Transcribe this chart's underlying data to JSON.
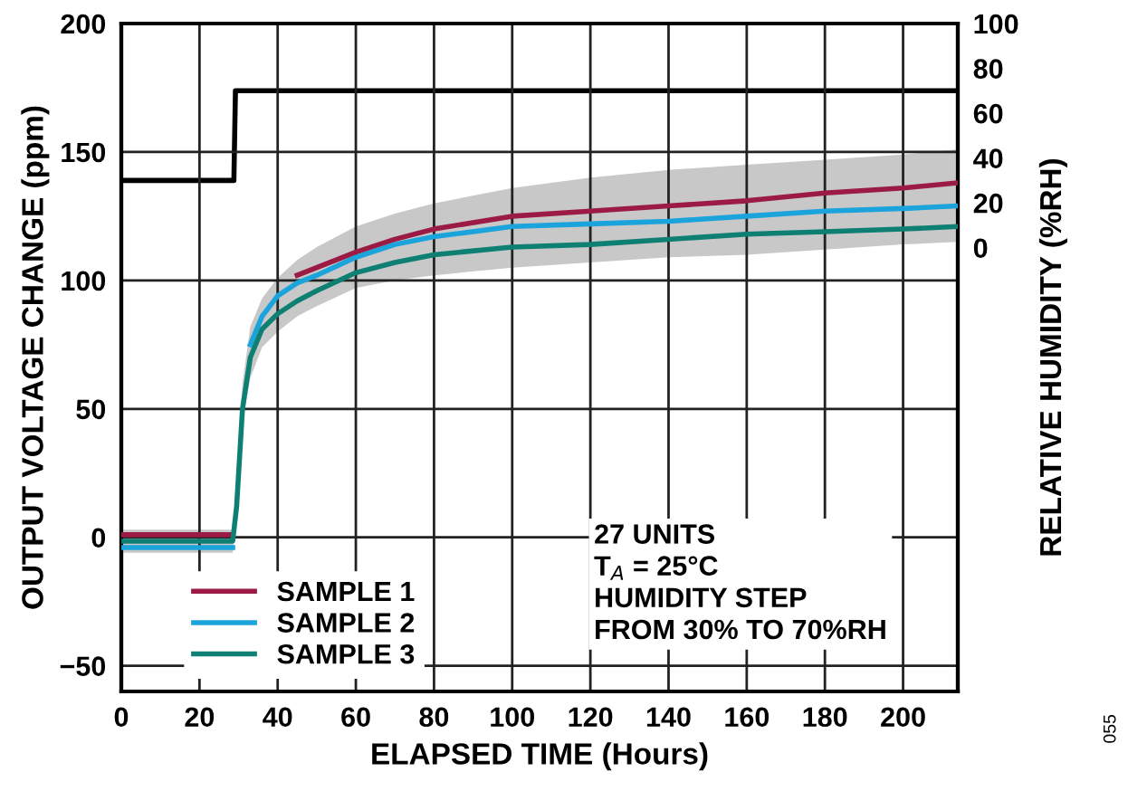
{
  "chart_data": {
    "type": "line",
    "xlabel": "ELAPSED TIME (Hours)",
    "ylabel": "OUTPUT VOLTAGE CHANGE (ppm)",
    "y2label": "RELATIVE HUMIDITY (%RH)",
    "xlim": [
      0,
      214
    ],
    "xticks": [
      0,
      20,
      40,
      60,
      80,
      100,
      120,
      140,
      160,
      180,
      200
    ],
    "ylim": [
      -60,
      200
    ],
    "yticks": [
      -50,
      0,
      50,
      100,
      150,
      200
    ],
    "y2lim": [
      -198,
      100
    ],
    "y2ticks": [
      0,
      20,
      40,
      60,
      80,
      100
    ],
    "grid": true,
    "legend": "bottom left",
    "line_style": "solid",
    "marker": "none",
    "x": [
      0,
      10,
      20,
      28.5,
      29.5,
      31,
      33,
      36,
      40,
      45,
      50,
      60,
      70,
      80,
      100,
      120,
      140,
      160,
      180,
      200,
      214
    ],
    "series": [
      {
        "color": "#c8c8c8",
        "values": [
          null,
          null,
          null,
          null,
          null,
          null,
          null,
          null,
          null,
          null,
          null,
          null,
          null,
          null,
          null,
          null,
          null,
          null,
          null,
          null,
          null
        ],
        "lower": [
          -6,
          -6,
          -6,
          -6,
          8,
          45,
          62,
          74,
          80,
          86,
          90,
          97,
          100,
          102,
          105,
          107,
          109,
          110,
          112,
          114,
          115
        ],
        "upper": [
          3,
          3,
          3,
          3,
          20,
          60,
          82,
          93,
          101,
          108,
          113,
          121,
          126,
          130,
          136,
          140,
          143,
          145,
          147,
          149,
          151
        ]
      },
      {
        "name": "SAMPLE 1",
        "color": "#9b1b45",
        "values": [
          1,
          1,
          1,
          1,
          null,
          null,
          null,
          null,
          null,
          102,
          105,
          111,
          116,
          120,
          125,
          127,
          129,
          131,
          134,
          136,
          138
        ]
      },
      {
        "name": "SAMPLE 2",
        "color": "#1ba3dc",
        "values": [
          -4,
          -4,
          -4,
          -4,
          null,
          null,
          75,
          86,
          94,
          99,
          102,
          109,
          114,
          117,
          121,
          122,
          123,
          125,
          127,
          128,
          129
        ]
      },
      {
        "name": "SAMPLE 3",
        "color": "#0e7f73",
        "values": [
          -1.5,
          -1.5,
          -1.5,
          -1.5,
          12,
          50,
          70,
          81,
          87,
          92,
          96,
          103,
          107,
          110,
          113,
          114,
          116,
          118,
          119,
          120,
          121
        ]
      },
      {
        "color": "#000000",
        "axis": "y2",
        "x": [
          0,
          28.8,
          29.2,
          214
        ],
        "values": [
          30,
          30,
          70,
          70
        ]
      }
    ],
    "annotations": [
      "27 UNITS\nT$_{A}$ = 25°C\nHUMIDITY STEP\nFROM 30% TO 70%RH",
      "055"
    ]
  }
}
